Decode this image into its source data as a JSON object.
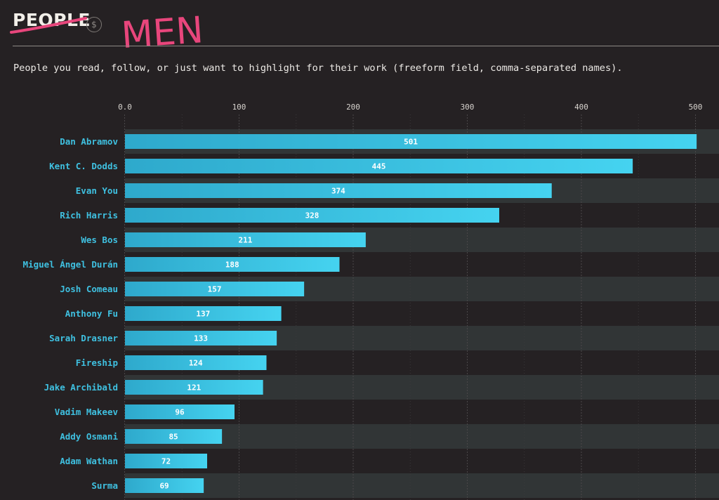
{
  "header": {
    "section_title": "PEOPLE",
    "annotation": "MEN",
    "description": "People you read, follow, or just want to highlight for their work (freeform field, comma-separated names).",
    "currency_glyph": "$"
  },
  "colors": {
    "background": "#252123",
    "band": "#313536",
    "bar_start": "#2ea9cc",
    "bar_end": "#45d3f0",
    "label": "#3fc0e0",
    "annotation": "#e8467c"
  },
  "chart_data": {
    "type": "bar",
    "orientation": "horizontal",
    "title": "",
    "xlabel": "",
    "ylabel": "",
    "xlim": [
      0,
      500
    ],
    "ticks": [
      {
        "value": 0,
        "label": "0.0"
      },
      {
        "value": 100,
        "label": "100"
      },
      {
        "value": 200,
        "label": "200"
      },
      {
        "value": 300,
        "label": "300"
      },
      {
        "value": 400,
        "label": "400"
      },
      {
        "value": 500,
        "label": "500"
      }
    ],
    "grid": true,
    "categories": [
      "Dan Abramov",
      "Kent C. Dodds",
      "Evan You",
      "Rich Harris",
      "Wes Bos",
      "Miguel Ángel Durán",
      "Josh Comeau",
      "Anthony Fu",
      "Sarah Drasner",
      "Fireship",
      "Jake Archibald",
      "Vadim Makeev",
      "Addy Osmani",
      "Adam Wathan",
      "Surma"
    ],
    "values": [
      501,
      445,
      374,
      328,
      211,
      188,
      157,
      137,
      133,
      124,
      121,
      96,
      85,
      72,
      69
    ]
  }
}
